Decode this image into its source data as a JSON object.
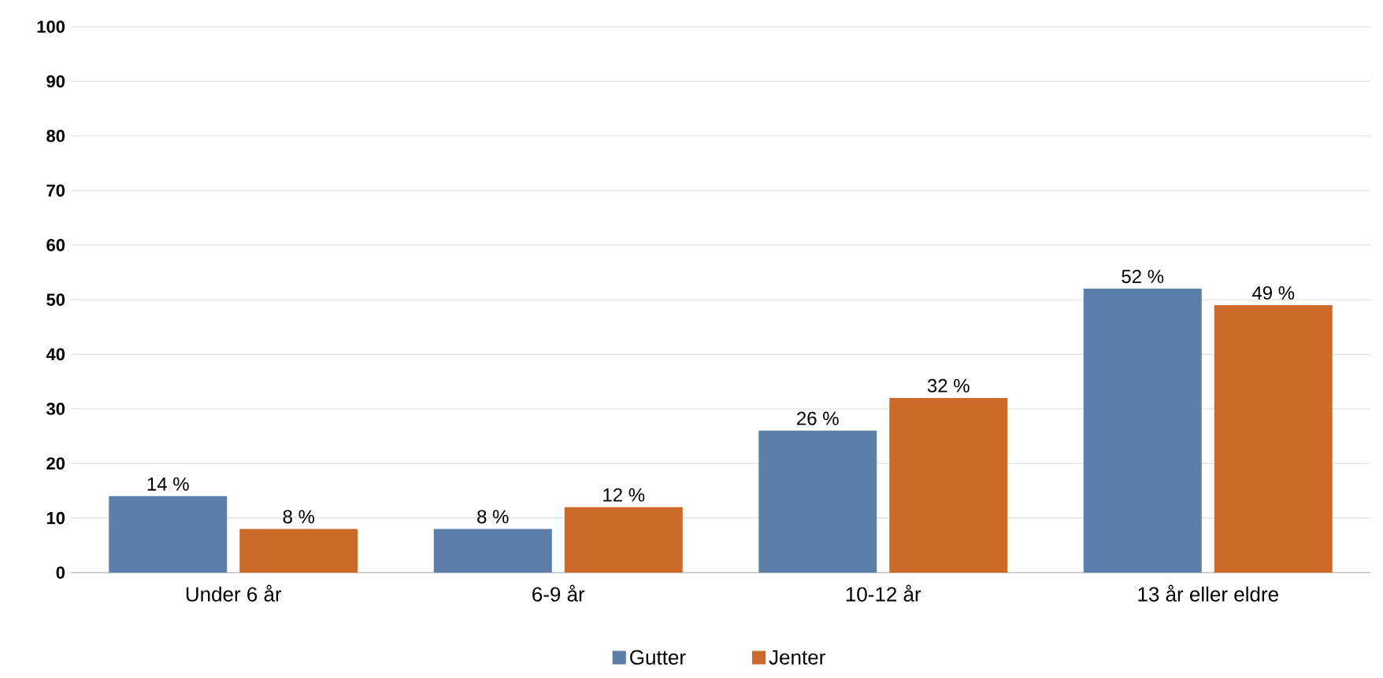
{
  "chart_data": {
    "type": "bar",
    "categories": [
      "Under 6 år",
      "6-9 år",
      "10-12 år",
      "13 år eller eldre"
    ],
    "series": [
      {
        "name": "Gutter",
        "color": "#5b7fa8",
        "values": [
          14,
          8,
          26,
          52
        ],
        "value_labels": [
          "14 %",
          "8 %",
          "26 %",
          "52 %"
        ]
      },
      {
        "name": "Jenter",
        "color": "#cc6a2c",
        "values": [
          8,
          12,
          32,
          49
        ],
        "value_labels": [
          "8 %",
          "12 %",
          "32 %",
          "49 %"
        ]
      }
    ],
    "ylim": [
      0,
      100
    ],
    "yticks": [
      0,
      10,
      20,
      30,
      40,
      50,
      60,
      70,
      80,
      90,
      100
    ],
    "grid": "y",
    "legend": "bottom"
  }
}
